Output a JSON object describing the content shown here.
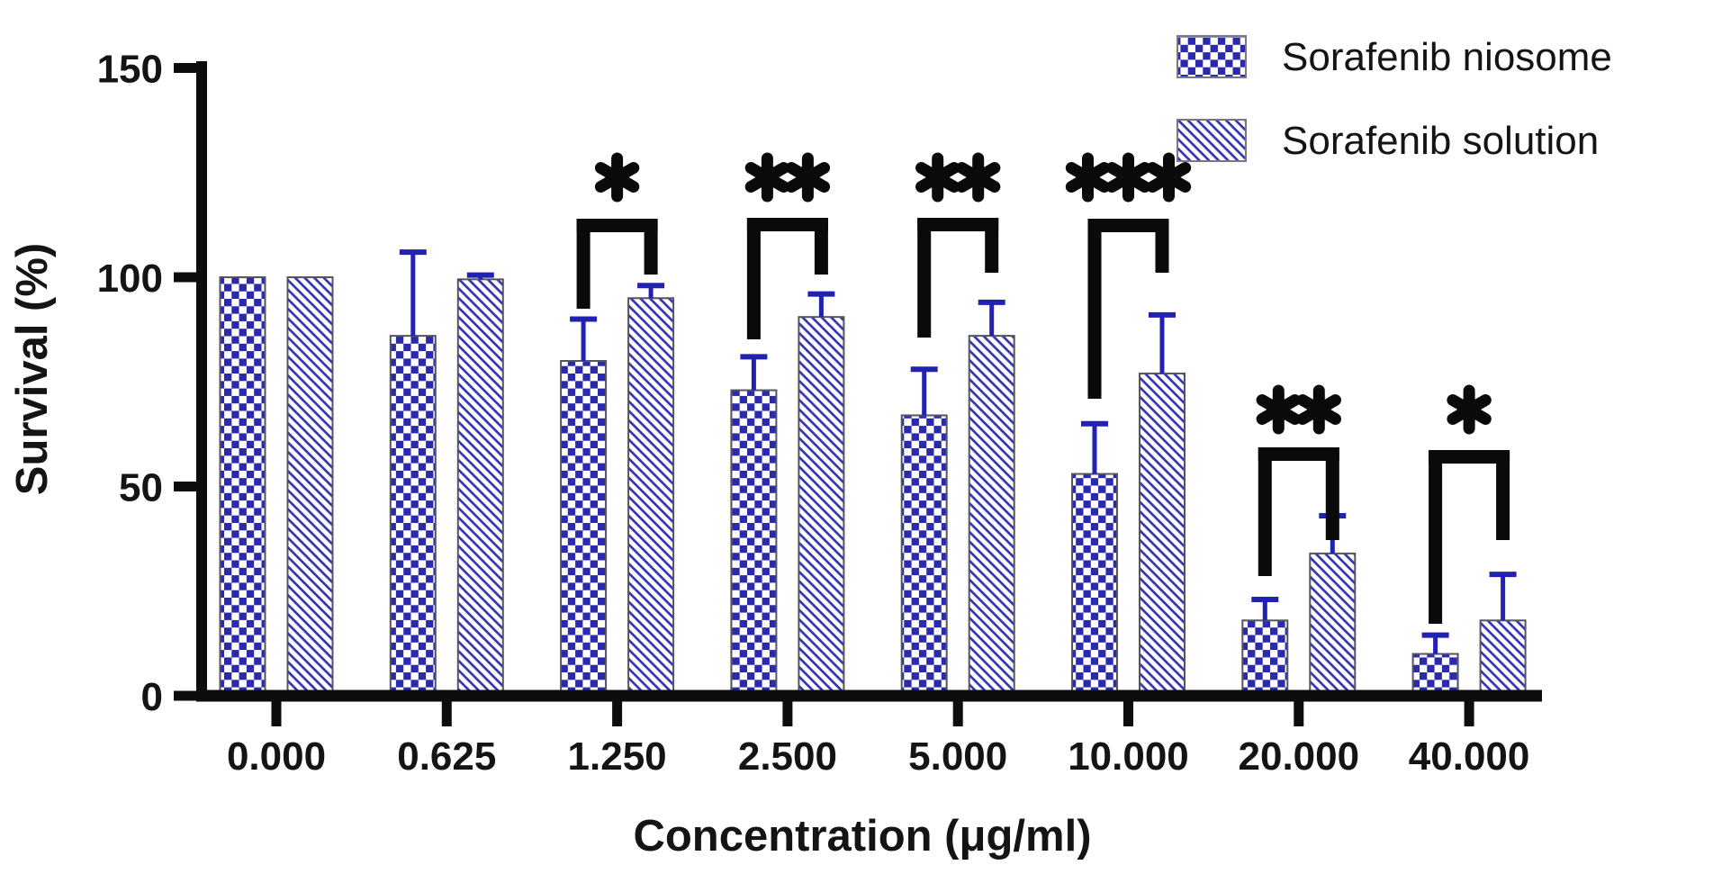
{
  "figure": {
    "background": "#ffffff",
    "colors": {
      "bar_blue": "#2a2aac",
      "hatch_blue": "#3434b4",
      "error_blue": "#2222b2",
      "bar_outline": "#55555f",
      "axis_black": "#0d0d0d",
      "text_black": "#141414",
      "bracket_black": "#0a0a0a"
    }
  },
  "chart_data": {
    "type": "bar",
    "title": "",
    "xlabel": "Concentration (μg/ml)",
    "ylabel": "Survival (%)",
    "ylim": [
      0,
      150
    ],
    "yticks": [
      0,
      50,
      100,
      150
    ],
    "ytick_labels": [
      "0",
      "50",
      "100",
      "150"
    ],
    "grid": false,
    "legend_position": "top-right",
    "categories": [
      "0.000",
      "0.625",
      "1.250",
      "2.500",
      "5.000",
      "10.000",
      "20.000",
      "40.000"
    ],
    "series": [
      {
        "name": "Sorafenib niosome",
        "pattern": "checker",
        "values": [
          100,
          86,
          80,
          73,
          67,
          53,
          18,
          10
        ],
        "errors": [
          0,
          20,
          10,
          8,
          11,
          12,
          5,
          4.5
        ]
      },
      {
        "name": "Sorafenib solution",
        "pattern": "hatch",
        "values": [
          100,
          99.5,
          95,
          90.5,
          86,
          77,
          34,
          18
        ],
        "errors": [
          0,
          1,
          3,
          5.5,
          8,
          14,
          9,
          11
        ]
      }
    ],
    "significance": [
      {
        "category_index": 2,
        "category": "1.250",
        "label": "*"
      },
      {
        "category_index": 3,
        "category": "2.500",
        "label": "**"
      },
      {
        "category_index": 4,
        "category": "5.000",
        "label": "**"
      },
      {
        "category_index": 5,
        "category": "10.000",
        "label": "***"
      },
      {
        "category_index": 6,
        "category": "20.000",
        "label": "**"
      },
      {
        "category_index": 7,
        "category": "40.000",
        "label": "*"
      }
    ]
  }
}
